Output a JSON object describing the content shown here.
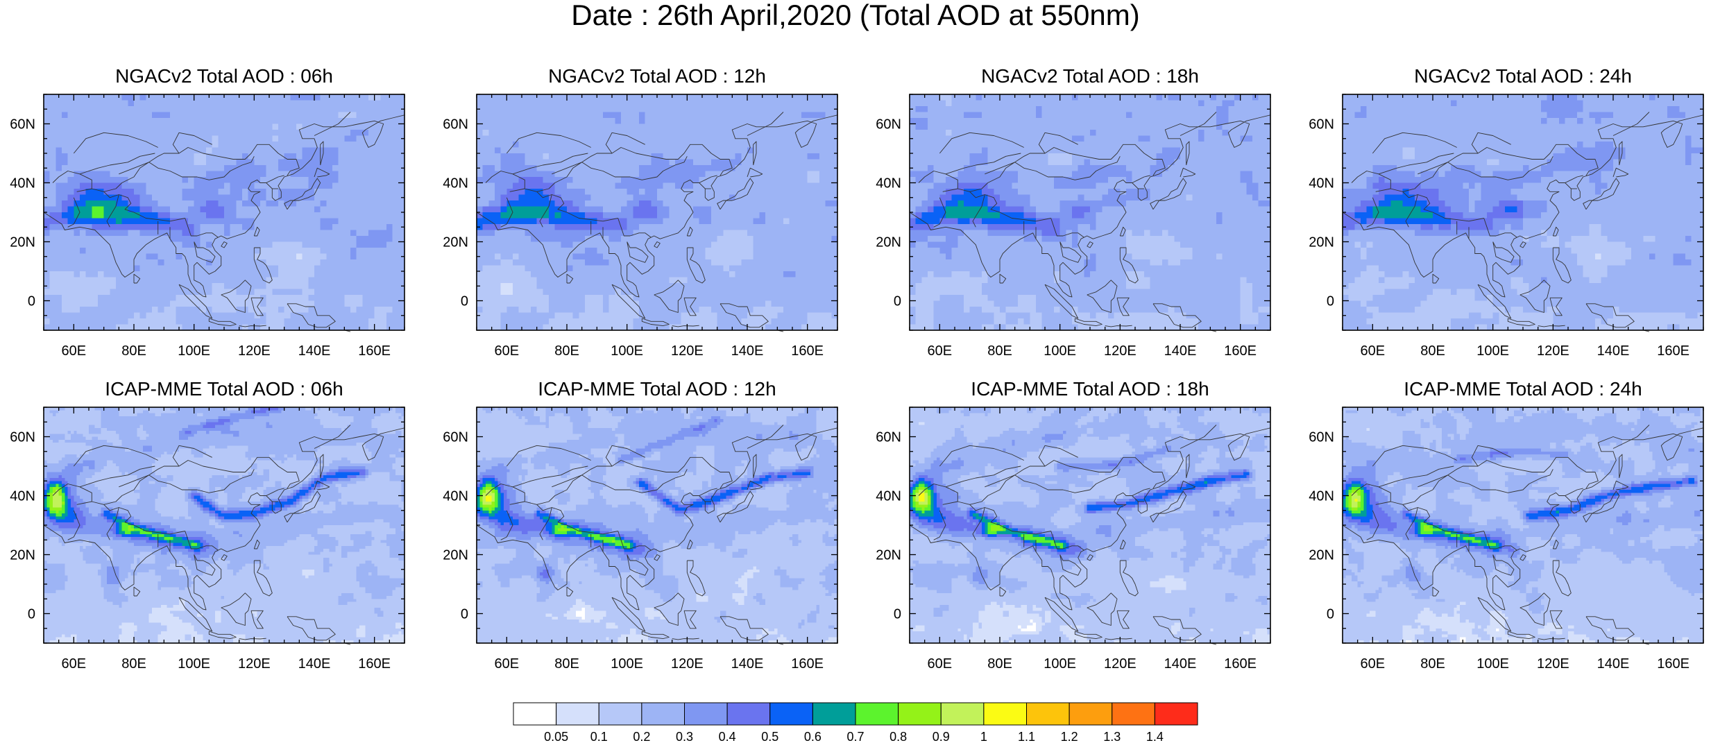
{
  "title": "Date : 26th April,2020 (Total AOD at 550nm)",
  "map": {
    "x_ticks": [
      "60E",
      "80E",
      "100E",
      "120E",
      "140E",
      "160E"
    ],
    "y_ticks": [
      "60N",
      "40N",
      "20N",
      "0"
    ]
  },
  "panels": [
    {
      "title": "NGACv2 Total AOD : 06h",
      "model": "NGACv2",
      "hour": "06h"
    },
    {
      "title": "NGACv2 Total AOD : 12h",
      "model": "NGACv2",
      "hour": "12h"
    },
    {
      "title": "NGACv2 Total AOD : 18h",
      "model": "NGACv2",
      "hour": "18h"
    },
    {
      "title": "NGACv2 Total AOD : 24h",
      "model": "NGACv2",
      "hour": "24h"
    },
    {
      "title": "ICAP-MME Total AOD : 06h",
      "model": "ICAP-MME",
      "hour": "06h"
    },
    {
      "title": "ICAP-MME Total AOD : 12h",
      "model": "ICAP-MME",
      "hour": "12h"
    },
    {
      "title": "ICAP-MME Total AOD : 18h",
      "model": "ICAP-MME",
      "hour": "18h"
    },
    {
      "title": "ICAP-MME Total AOD : 24h",
      "model": "ICAP-MME",
      "hour": "24h"
    }
  ],
  "colorbar": {
    "labels": [
      "0.05",
      "0.1",
      "0.2",
      "0.3",
      "0.4",
      "0.5",
      "0.6",
      "0.7",
      "0.8",
      "0.9",
      "1",
      "1.1",
      "1.2",
      "1.3",
      "1.4"
    ],
    "colors": [
      "#ffffff",
      "#d5e0fb",
      "#b6c8f8",
      "#9db4f5",
      "#7f97f2",
      "#6a74ef",
      "#0a62f6",
      "#009e99",
      "#5cf32d",
      "#94f218",
      "#c2f25a",
      "#fbfb14",
      "#fdc40b",
      "#fd9e0e",
      "#fe7213",
      "#fe2c1a"
    ]
  }
}
